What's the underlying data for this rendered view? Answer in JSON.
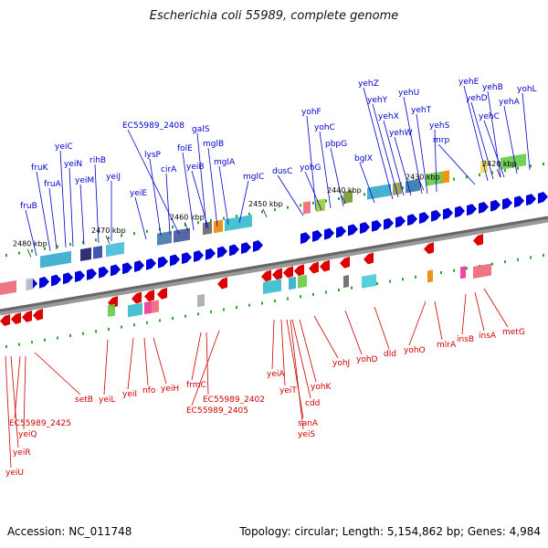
{
  "title": "Escherichia coli 55989, complete genome",
  "footer": {
    "accession": "Accession: NC_011748",
    "summary": "Topology: circular; Length: 5,154,862 bp; Genes: 4,984"
  },
  "colors": {
    "forward": "#0000dd",
    "reverse": "#dd0000",
    "forward_label": "#0000cc",
    "reverse_label": "#cc0000",
    "axis": "#777777",
    "tick": "#22aa22"
  },
  "scale_labels": [
    "2480 kbp",
    "2470 kbp",
    "2460 kbp",
    "2450 kbp",
    "2440 kbp",
    "2430 kbp",
    "2420 kbp"
  ],
  "forward_genes": [
    "fruB",
    "fruK",
    "fruA",
    "yeiC",
    "yeiN",
    "yeiM",
    "rihB",
    "yeiJ",
    "yeiE",
    "lysP",
    "EC55989_2408",
    "cirA",
    "folE",
    "galS",
    "yeiB",
    "mglB",
    "mglA",
    "mglC",
    "dusC",
    "yohF",
    "yohG",
    "yohC",
    "pbpG",
    "bglX",
    "yehZ",
    "yehY",
    "yehX",
    "yehW",
    "yehU",
    "yehT",
    "yehS",
    "mrp",
    "yehE",
    "yehD",
    "yehB",
    "yehC",
    "yehA",
    "yohL"
  ],
  "reverse_genes": [
    "setB",
    "yeiL",
    "yeiI",
    "nfo",
    "yeiH",
    "frmC",
    "EC55989_2402",
    "EC55989_2405",
    "EC55989_2425",
    "yeiQ",
    "yeiR",
    "yeiU",
    "yeiA",
    "yeiT",
    "cdd",
    "yohK",
    "sanA",
    "yeiS",
    "yohJ",
    "yohD",
    "dld",
    "yohO",
    "mlrA",
    "insB",
    "insA",
    "metG"
  ]
}
